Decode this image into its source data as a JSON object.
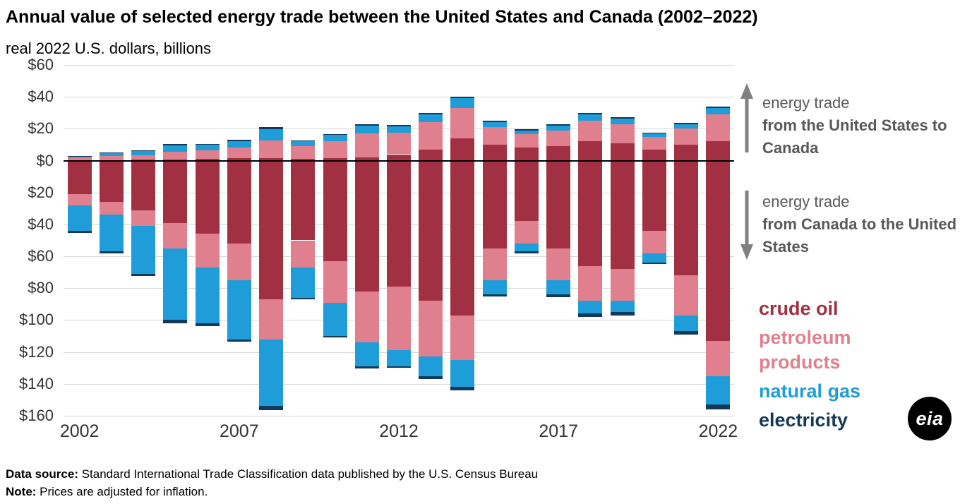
{
  "title": "Annual value of selected energy trade between the United States and Canada (2002–2022)",
  "subtitle": "real 2022 U.S. dollars, billions",
  "annotations": {
    "export_plain": "energy trade",
    "export_bold": "from the United States to Canada",
    "import_plain": "energy trade",
    "import_bold": "from Canada to the United States"
  },
  "legend": {
    "items": [
      {
        "label": "crude oil",
        "color": "#a23043"
      },
      {
        "label": "petroleum products",
        "color": "#e0808e"
      },
      {
        "label": "natural gas",
        "color": "#1e9dd8"
      },
      {
        "label": "electricity",
        "color": "#12395b"
      }
    ]
  },
  "colors": {
    "crude_oil": "#a23043",
    "petroleum_products": "#e0808e",
    "natural_gas": "#1e9dd8",
    "electricity": "#12395b",
    "gridline": "#d9d9d9",
    "zero_line": "#000000",
    "annotation_gray": "#595959",
    "arrow_gray": "#808080"
  },
  "footer": {
    "source_label": "Data source:",
    "source_text": " Standard International Trade Classification data published by the U.S. Census Bureau",
    "note_label": "Note:",
    "note_text": " Prices are adjusted for inflation."
  },
  "logo_text": "eia",
  "chart_data": {
    "type": "bar",
    "stacked": true,
    "diverging": true,
    "unit": "billion real 2022 U.S. dollars",
    "title": "Annual value of selected energy trade between the United States and Canada (2002–2022)",
    "positive_direction_label": "energy trade from the United States to Canada",
    "negative_direction_label": "energy trade from Canada to the United States",
    "categories": [
      "2002",
      "2003",
      "2004",
      "2005",
      "2006",
      "2007",
      "2008",
      "2009",
      "2010",
      "2011",
      "2012",
      "2013",
      "2014",
      "2015",
      "2016",
      "2017",
      "2018",
      "2019",
      "2020",
      "2021",
      "2022"
    ],
    "x_tick_labels": [
      "2002",
      "2007",
      "2012",
      "2017",
      "2022"
    ],
    "ylim": [
      -160,
      60
    ],
    "ytick_interval": 20,
    "ytick_label_style": "absolute value with dollar sign",
    "grid": true,
    "series_positive": [
      {
        "name": "crude oil",
        "values": [
          0.3,
          0.4,
          0.5,
          0.8,
          1.0,
          1.5,
          1.5,
          1.0,
          1.5,
          2.0,
          4.0,
          7.0,
          14.0,
          10.0,
          8.0,
          9.0,
          12.0,
          11.0,
          7.0,
          10.0,
          12.0
        ]
      },
      {
        "name": "petroleum products",
        "values": [
          1.5,
          2.3,
          3.0,
          4.7,
          5.5,
          6.5,
          11.0,
          8.0,
          10.5,
          15.0,
          13.5,
          17.0,
          19.0,
          11.0,
          8.5,
          10.0,
          13.0,
          12.0,
          8.0,
          10.0,
          17.0
        ]
      },
      {
        "name": "natural gas",
        "values": [
          1.0,
          2.0,
          2.5,
          4.0,
          3.5,
          4.0,
          7.0,
          3.0,
          4.0,
          5.0,
          4.0,
          5.0,
          6.0,
          3.0,
          2.5,
          3.0,
          4.0,
          3.5,
          2.0,
          3.0,
          4.0
        ]
      },
      {
        "name": "electricity",
        "values": [
          0.3,
          0.3,
          0.5,
          1.0,
          0.5,
          1.0,
          1.5,
          0.5,
          0.8,
          1.0,
          0.7,
          1.0,
          1.0,
          1.0,
          0.8,
          1.0,
          1.0,
          0.8,
          0.7,
          0.8,
          1.0
        ]
      }
    ],
    "series_negative": [
      {
        "name": "crude oil",
        "values": [
          21,
          26,
          31,
          39,
          46,
          52,
          87,
          50,
          63,
          82,
          79,
          88,
          97,
          55,
          38,
          55,
          66,
          68,
          44,
          72,
          113
        ]
      },
      {
        "name": "petroleum products",
        "values": [
          7,
          8,
          10,
          16,
          21,
          23,
          25,
          17,
          26,
          32,
          40,
          35,
          28,
          20,
          14,
          20,
          22,
          20,
          14,
          25,
          22
        ]
      },
      {
        "name": "natural gas",
        "values": [
          16,
          23,
          30,
          45,
          35,
          37,
          42,
          19,
          21,
          15,
          10,
          12,
          17,
          9,
          5,
          9,
          8,
          7,
          6,
          10,
          18
        ]
      },
      {
        "name": "electricity",
        "values": [
          1.5,
          1.0,
          1.5,
          2.0,
          2.0,
          1.5,
          2.5,
          1.0,
          1.0,
          1.5,
          1.0,
          2.0,
          2.0,
          1.0,
          1.0,
          1.5,
          2.0,
          2.0,
          1.0,
          2.0,
          3.0
        ]
      }
    ]
  }
}
